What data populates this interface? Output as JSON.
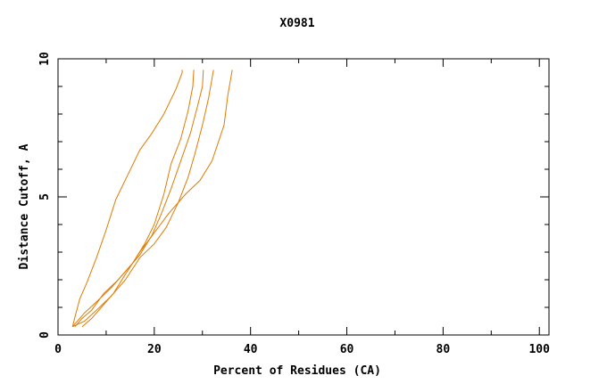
{
  "chart_data": {
    "type": "line",
    "title": "X0981",
    "xlabel": "Percent of Residues (CA)",
    "ylabel": "Distance Cutoff, A",
    "xlim": [
      0,
      102
    ],
    "ylim": [
      0,
      10
    ],
    "x_ticks": [
      0,
      20,
      40,
      60,
      80,
      100
    ],
    "y_ticks": [
      0,
      5,
      10
    ],
    "grid": false,
    "line_color": "#e07b00",
    "series": [
      {
        "x": [
          3.0,
          3.6,
          4.5,
          6.0,
          8.0,
          10.0,
          12.0,
          14.5,
          17.0,
          19.5,
          22.0,
          24.5,
          25.8,
          25.8
        ],
        "y": [
          0.3,
          0.7,
          1.3,
          1.9,
          2.8,
          3.8,
          4.9,
          5.8,
          6.7,
          7.3,
          8.0,
          8.9,
          9.5,
          9.6
        ]
      },
      {
        "x": [
          3.5,
          5.0,
          7.0,
          9.5,
          12.5,
          15.5,
          18.0,
          20.0,
          22.0,
          23.5,
          25.5,
          27.0,
          28.0,
          28.2
        ],
        "y": [
          0.3,
          0.6,
          0.9,
          1.5,
          2.0,
          2.6,
          3.3,
          4.0,
          5.1,
          6.2,
          7.1,
          8.1,
          9.0,
          9.6
        ]
      },
      {
        "x": [
          3.0,
          5.5,
          8.0,
          11.0,
          14.0,
          17.0,
          19.5,
          21.5,
          23.5,
          25.5,
          27.5,
          29.0,
          30.0,
          30.2
        ],
        "y": [
          0.3,
          0.8,
          1.2,
          1.7,
          2.3,
          2.9,
          3.6,
          4.4,
          5.3,
          6.3,
          7.3,
          8.3,
          9.0,
          9.6
        ]
      },
      {
        "x": [
          3.0,
          5.5,
          8.0,
          11.0,
          14.0,
          17.0,
          20.0,
          22.5,
          25.0,
          27.0,
          28.5,
          30.0,
          31.3,
          32.3
        ],
        "y": [
          0.3,
          0.5,
          0.9,
          1.4,
          2.0,
          2.8,
          3.3,
          3.9,
          4.8,
          5.7,
          6.6,
          7.6,
          8.6,
          9.6
        ]
      },
      {
        "x": [
          5.0,
          7.0,
          9.0,
          11.5,
          14.0,
          17.0,
          20.0,
          23.0,
          26.5,
          29.5,
          32.0,
          34.5,
          35.3,
          36.2
        ],
        "y": [
          0.3,
          0.6,
          1.0,
          1.5,
          2.2,
          3.0,
          3.7,
          4.4,
          5.1,
          5.6,
          6.3,
          7.6,
          8.7,
          9.6
        ]
      }
    ]
  }
}
